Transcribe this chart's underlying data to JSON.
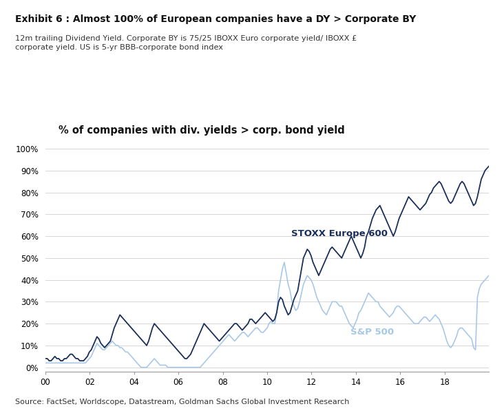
{
  "title_bold": "Exhibit 6 : Almost 100% of European companies have a DY > Corporate BY",
  "subtitle": "12m trailing Dividend Yield. Corporate BY is 75/25 IBOXX Euro corporate yield/ IBOXX £\ncorporate yield. US is 5-yr BBB-corporate bond index",
  "chart_title": "% of companies with div. yields > corp. bond yield",
  "source": "Source: FactSet, Worldscope, Datastream, Goldman Sachs Global Investment Research",
  "stoxx_label": "STOXX Europe 600",
  "sp_label": "S&P 500",
  "stoxx_color": "#1a2e5a",
  "sp_color": "#a8c8e8",
  "background_color": "#ffffff",
  "xlim": [
    0,
    240
  ],
  "ylim": [
    -2,
    100
  ],
  "xtick_positions": [
    0,
    24,
    48,
    72,
    96,
    120,
    144,
    168,
    192,
    216
  ],
  "xtick_labels": [
    "00",
    "02",
    "04",
    "06",
    "08",
    "10",
    "12",
    "14",
    "16",
    "18"
  ],
  "ytick_positions": [
    0,
    10,
    20,
    30,
    40,
    50,
    60,
    70,
    80,
    90,
    100
  ],
  "ytick_labels": [
    "0%",
    "10%",
    "20%",
    "30%",
    "40%",
    "50%",
    "60%",
    "70%",
    "80%",
    "90%",
    "100%"
  ],
  "stoxx_data": [
    4,
    4,
    3,
    3,
    4,
    5,
    4,
    4,
    3,
    3,
    4,
    4,
    5,
    6,
    6,
    5,
    4,
    4,
    3,
    3,
    3,
    4,
    5,
    7,
    8,
    10,
    12,
    14,
    13,
    11,
    10,
    9,
    10,
    11,
    12,
    15,
    18,
    20,
    22,
    24,
    23,
    22,
    21,
    20,
    19,
    18,
    17,
    16,
    15,
    14,
    13,
    12,
    11,
    10,
    12,
    15,
    18,
    20,
    19,
    18,
    17,
    16,
    15,
    14,
    13,
    12,
    11,
    10,
    9,
    8,
    7,
    6,
    5,
    4,
    4,
    5,
    6,
    8,
    10,
    12,
    14,
    16,
    18,
    20,
    19,
    18,
    17,
    16,
    15,
    14,
    13,
    12,
    13,
    14,
    15,
    16,
    17,
    18,
    19,
    20,
    20,
    19,
    18,
    17,
    18,
    19,
    20,
    22,
    22,
    21,
    20,
    21,
    22,
    23,
    24,
    25,
    24,
    23,
    22,
    21,
    22,
    25,
    30,
    32,
    31,
    28,
    26,
    24,
    25,
    28,
    31,
    33,
    35,
    40,
    45,
    50,
    52,
    54,
    53,
    51,
    48,
    46,
    44,
    42,
    44,
    46,
    48,
    50,
    52,
    54,
    55,
    54,
    53,
    52,
    51,
    50,
    52,
    54,
    56,
    58,
    60,
    58,
    56,
    54,
    52,
    50,
    52,
    55,
    60,
    62,
    65,
    68,
    70,
    72,
    73,
    74,
    72,
    70,
    68,
    66,
    64,
    62,
    60,
    62,
    65,
    68,
    70,
    72,
    74,
    76,
    78,
    77,
    76,
    75,
    74,
    73,
    72,
    73,
    74,
    75,
    77,
    79,
    80,
    82,
    83,
    84,
    85,
    84,
    82,
    80,
    78,
    76,
    75,
    76,
    78,
    80,
    82,
    84,
    85,
    84,
    82,
    80,
    78,
    76,
    74,
    75,
    78,
    82,
    86,
    88,
    90,
    91,
    92
  ],
  "sp_data": [
    2,
    2,
    2,
    2,
    2,
    2,
    2,
    2,
    2,
    2,
    2,
    2,
    2,
    2,
    2,
    2,
    2,
    2,
    2,
    2,
    2,
    2,
    3,
    4,
    5,
    7,
    9,
    11,
    10,
    9,
    8,
    8,
    9,
    10,
    11,
    12,
    11,
    10,
    10,
    9,
    9,
    8,
    7,
    7,
    6,
    5,
    4,
    3,
    2,
    1,
    0,
    0,
    0,
    0,
    1,
    2,
    3,
    4,
    3,
    2,
    1,
    1,
    1,
    1,
    0,
    0,
    0,
    0,
    0,
    0,
    0,
    0,
    0,
    0,
    0,
    0,
    0,
    0,
    0,
    0,
    0,
    0,
    1,
    2,
    3,
    4,
    5,
    6,
    7,
    8,
    9,
    10,
    11,
    12,
    13,
    14,
    15,
    14,
    13,
    12,
    13,
    14,
    15,
    16,
    16,
    15,
    14,
    15,
    16,
    17,
    18,
    18,
    17,
    16,
    16,
    17,
    18,
    20,
    21,
    20,
    20,
    25,
    35,
    40,
    45,
    48,
    43,
    38,
    35,
    30,
    28,
    26,
    27,
    30,
    34,
    38,
    40,
    42,
    41,
    40,
    38,
    35,
    32,
    30,
    28,
    26,
    25,
    24,
    26,
    28,
    30,
    30,
    30,
    29,
    28,
    28,
    26,
    24,
    22,
    20,
    19,
    18,
    20,
    22,
    25,
    26,
    28,
    30,
    32,
    34,
    33,
    32,
    31,
    30,
    30,
    28,
    27,
    26,
    25,
    24,
    23,
    24,
    25,
    27,
    28,
    28,
    27,
    26,
    25,
    24,
    23,
    22,
    21,
    20,
    20,
    20,
    21,
    22,
    23,
    23,
    22,
    21,
    22,
    23,
    24,
    23,
    22,
    20,
    18,
    15,
    12,
    10,
    9,
    10,
    12,
    14,
    17,
    18,
    18,
    17,
    16,
    15,
    14,
    13,
    9,
    8,
    32,
    36,
    38,
    39,
    40,
    41,
    42
  ]
}
